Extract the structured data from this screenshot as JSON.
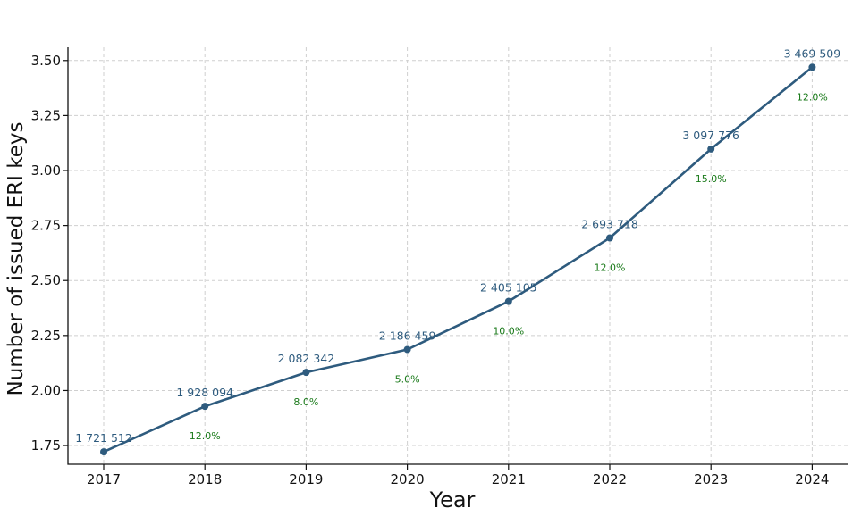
{
  "chart_data": {
    "type": "line",
    "title": "",
    "xlabel": "Year",
    "ylabel": "Number of issued ERI keys",
    "x": [
      "2017",
      "2018",
      "2019",
      "2020",
      "2021",
      "2022",
      "2023",
      "2024"
    ],
    "series": [
      {
        "values": [
          1.721512,
          1.928094,
          2.082342,
          2.186459,
          2.405105,
          2.693718,
          3.097776,
          3.469509
        ],
        "value_labels": [
          "1 721 512",
          "1 928 094",
          "2 082 342",
          "2 186 459",
          "2 405 105",
          "2 693 718",
          "3 097 776",
          "3 469 509"
        ],
        "growth_labels": [
          "",
          "12.0%",
          "8.0%",
          "5.0%",
          "10.0%",
          "12.0%",
          "15.0%",
          "12.0%"
        ]
      }
    ],
    "yticks": [
      "1.75",
      "2.00",
      "2.25",
      "2.50",
      "2.75",
      "3.00",
      "3.25",
      "3.50"
    ],
    "ytick_values": [
      1.75,
      2.0,
      2.25,
      2.5,
      2.75,
      3.0,
      3.25,
      3.5
    ],
    "ylim": [
      1.665,
      3.56
    ],
    "grid": true,
    "colors": {
      "line": "#2e5b7e",
      "growth": "#1a7a1a",
      "grid": "#cfcfcf"
    }
  }
}
